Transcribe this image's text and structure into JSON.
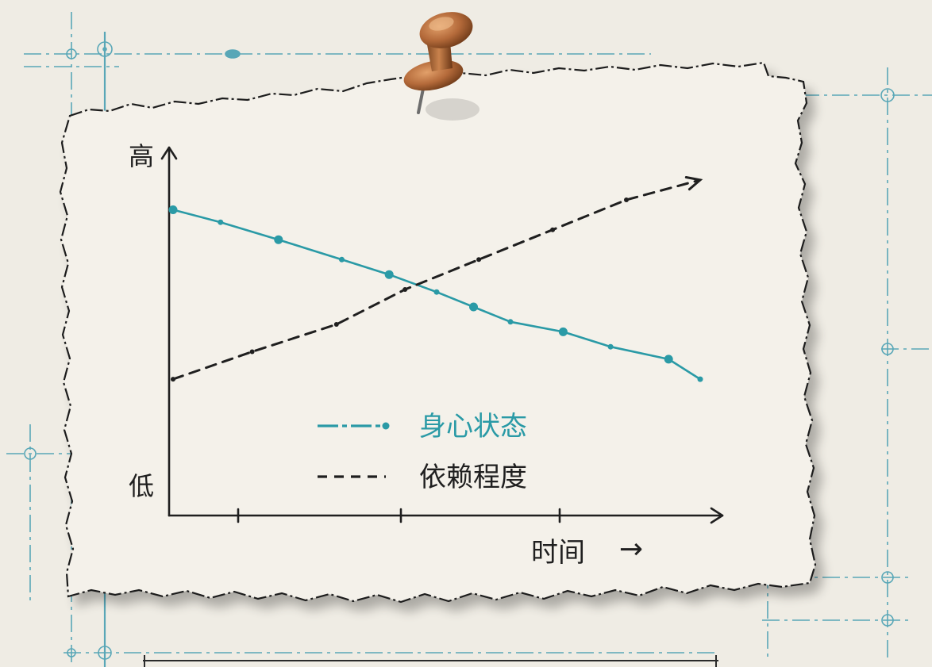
{
  "colors": {
    "background": "#efece4",
    "paper": "#f4f1ea",
    "ink": "#1f1f1f",
    "teal": "#2a9aa6",
    "blueprint": "#3f9bb0",
    "pin": "#b46a3a"
  },
  "icons": {
    "pin": "pushpin-icon"
  },
  "chart_data": {
    "type": "line",
    "title": "",
    "y_axis": {
      "high_label": "高",
      "low_label": "低",
      "range": [
        0,
        100
      ]
    },
    "x_axis": {
      "label": "时间",
      "arrow": "→",
      "range": [
        0,
        10
      ]
    },
    "grid": false,
    "legend_position": "bottom-center",
    "series": [
      {
        "name": "身心状态",
        "style": "solid",
        "color": "#2a9aa6",
        "points": [
          [
            0,
            89
          ],
          [
            0.9,
            84
          ],
          [
            2.0,
            77
          ],
          [
            3.2,
            69
          ],
          [
            4.1,
            63
          ],
          [
            5.0,
            56
          ],
          [
            5.7,
            50
          ],
          [
            6.4,
            44
          ],
          [
            7.4,
            40
          ],
          [
            8.3,
            34
          ],
          [
            9.4,
            29
          ],
          [
            10.0,
            21
          ]
        ]
      },
      {
        "name": "依赖程度",
        "style": "dashed",
        "color": "#1f1f1f",
        "points": [
          [
            0,
            21
          ],
          [
            1.5,
            32
          ],
          [
            3.1,
            43
          ],
          [
            4.4,
            57
          ],
          [
            5.8,
            69
          ],
          [
            7.2,
            81
          ],
          [
            8.6,
            93
          ],
          [
            10.0,
            101
          ]
        ]
      }
    ]
  }
}
